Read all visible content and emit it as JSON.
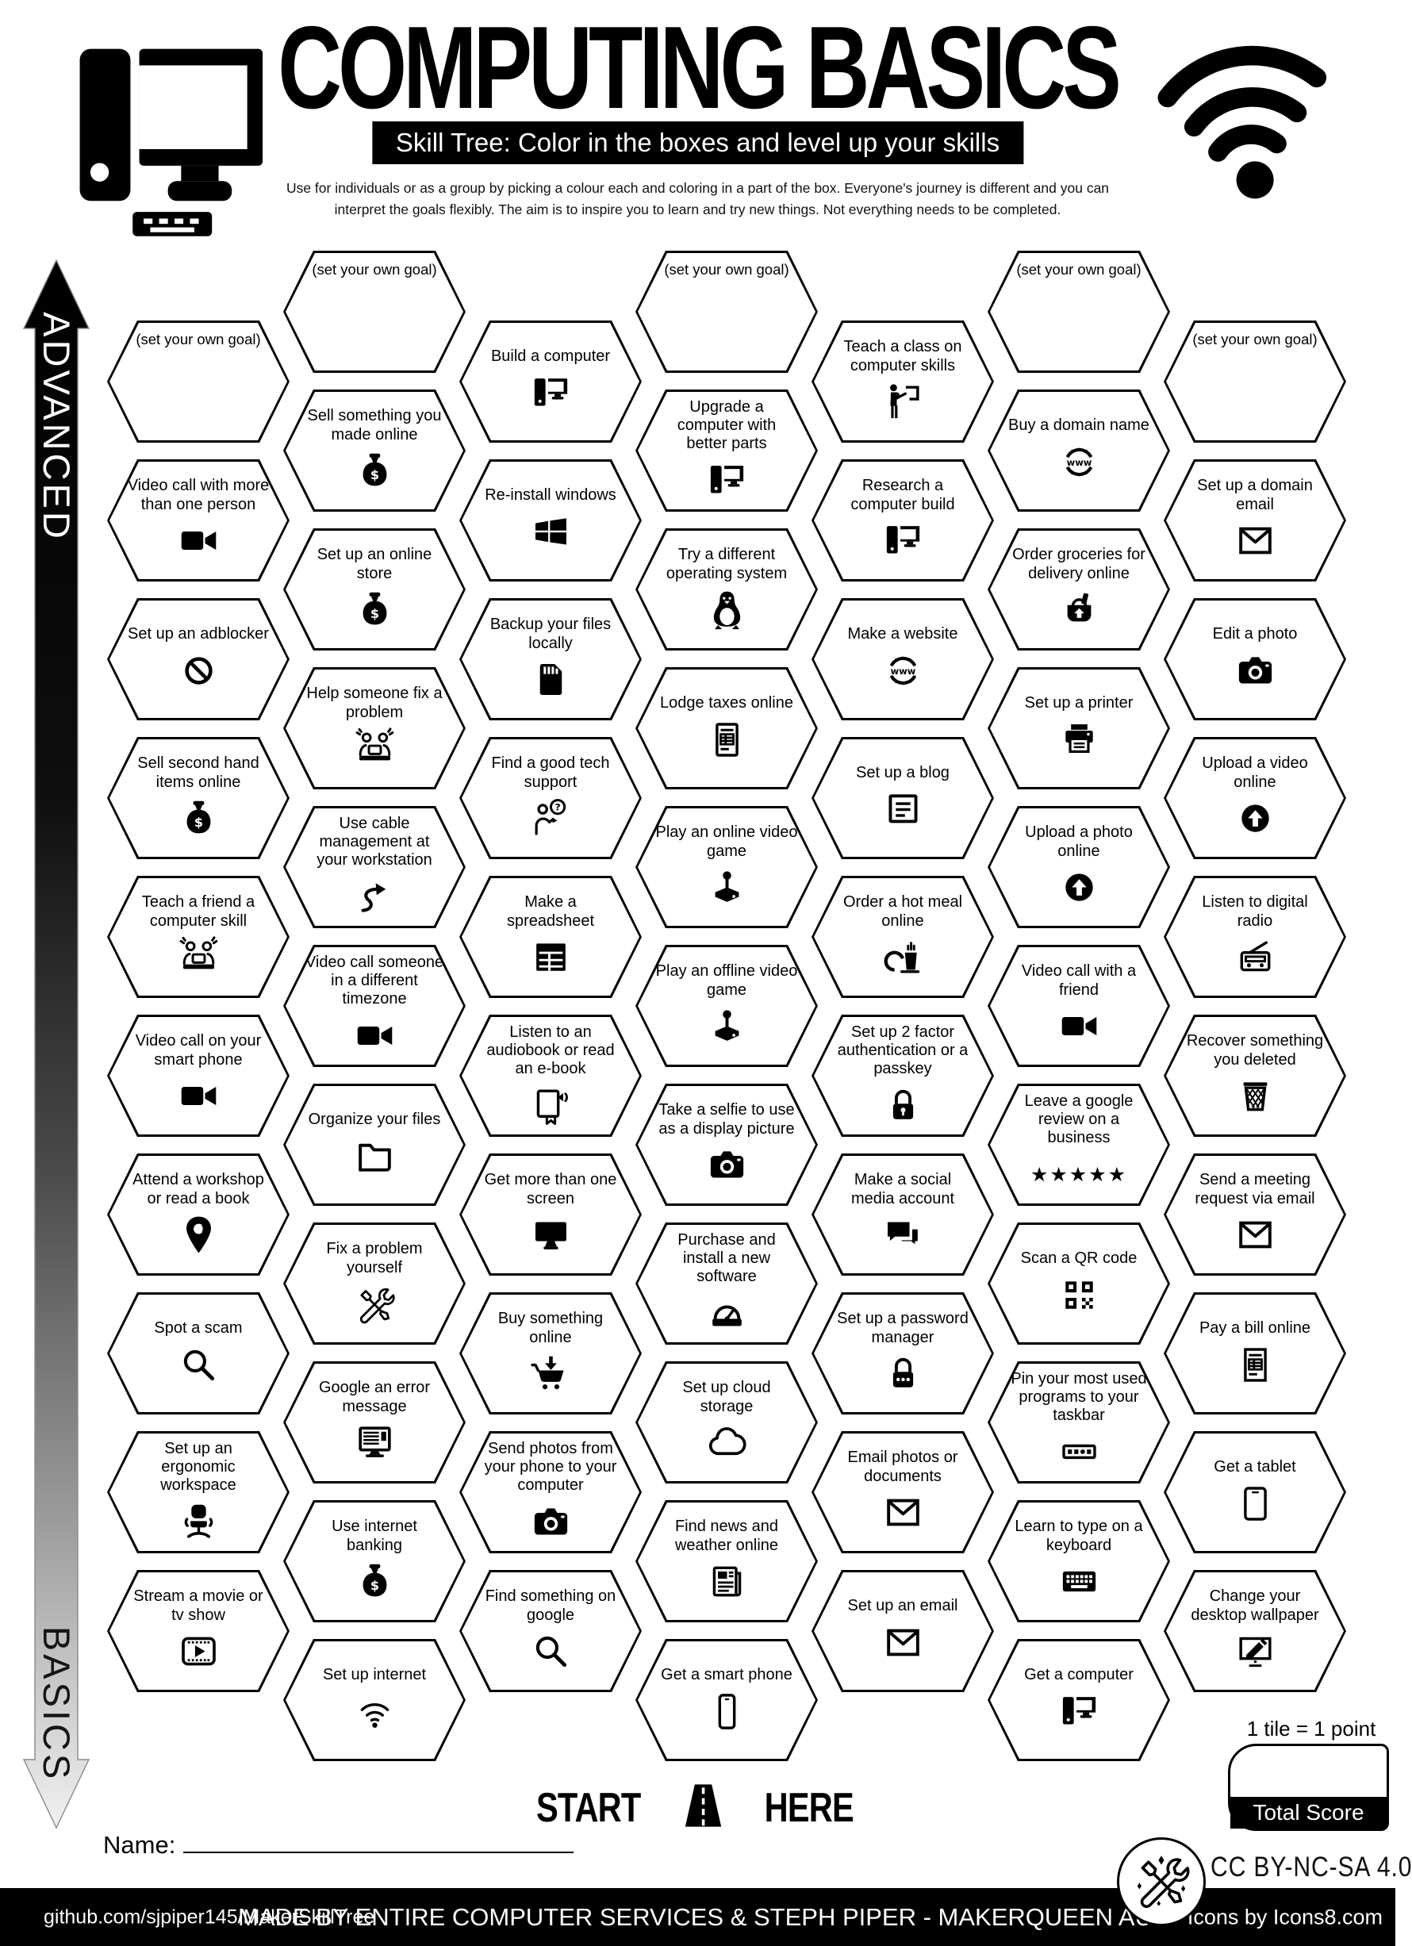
{
  "header": {
    "title": "COMPUTING BASICS",
    "subtitle": "Skill Tree:  Color in the boxes and level up your skills",
    "description_line1": "Use for individuals or as a group by picking a colour each and coloring in a part of the box.  Everyone's journey is different and you can",
    "description_line2": "interpret the goals flexibly.  The aim is to inspire you to learn and try new things. Not everything needs to be completed.",
    "computer_icon": "desktop-computer-icon",
    "wifi_icon": "wifi-icon"
  },
  "axis": {
    "advanced_label": "ADVANCED",
    "basics_label": "BASICS"
  },
  "skill_tree": {
    "goal_label": "(set your own goal)",
    "columns": [
      {
        "id": "col-1",
        "tiles": [
          {
            "type": "goal",
            "label": "(set your own goal)"
          },
          {
            "label": "Video call with more than one person",
            "icon": "video-camera-icon"
          },
          {
            "label": "Set up an adblocker",
            "icon": "prohibition-icon"
          },
          {
            "label": "Sell second hand items online",
            "icon": "money-bag-icon"
          },
          {
            "label": "Teach a friend a computer skill",
            "icon": "people-laptop-icon"
          },
          {
            "label": "Video call on your smart phone",
            "icon": "video-camera-icon"
          },
          {
            "label": "Attend a workshop or read a book",
            "icon": "location-pin-icon"
          },
          {
            "label": "Spot a scam",
            "icon": "magnifier-icon"
          },
          {
            "label": "Set up an ergonomic workspace",
            "icon": "office-chair-icon"
          },
          {
            "label": "Stream a movie or tv show",
            "icon": "film-play-icon"
          }
        ]
      },
      {
        "id": "col-2",
        "tiles": [
          {
            "type": "goal",
            "label": "(set your own goal)"
          },
          {
            "label": "Sell something you made online",
            "icon": "money-bag-icon"
          },
          {
            "label": "Set up an online store",
            "icon": "money-bag-icon"
          },
          {
            "label": "Help someone fix a problem",
            "icon": "people-laptop-icon"
          },
          {
            "label": "Use cable management at your workstation",
            "icon": "curved-arrow-icon"
          },
          {
            "label": "Video call someone in a different timezone",
            "icon": "video-camera-icon"
          },
          {
            "label": "Organize your files",
            "icon": "folder-icon"
          },
          {
            "label": "Fix a problem yourself",
            "icon": "crossed-tools-icon"
          },
          {
            "label": "Google an error message",
            "icon": "monitor-text-icon"
          },
          {
            "label": "Use internet banking",
            "icon": "money-bag-icon"
          },
          {
            "label": "Set up internet",
            "icon": "wifi-icon"
          }
        ]
      },
      {
        "id": "col-3",
        "tiles": [
          {
            "label": "Build a computer",
            "icon": "desktop-computer-icon"
          },
          {
            "label": "Re-install windows",
            "icon": "windows-logo-icon"
          },
          {
            "label": "Backup your files locally",
            "icon": "sd-card-icon"
          },
          {
            "label": "Find a good tech support",
            "icon": "person-question-icon"
          },
          {
            "label": "Make a spreadsheet",
            "icon": "spreadsheet-icon"
          },
          {
            "label": "Listen to an audiobook or read an e-book",
            "icon": "audiobook-icon"
          },
          {
            "label": "Get more than one screen",
            "icon": "monitor-icon"
          },
          {
            "label": "Buy something online",
            "icon": "cart-download-icon"
          },
          {
            "label": "Send photos from your phone to your computer",
            "icon": "camera-icon"
          },
          {
            "label": "Find something on google",
            "icon": "magnifier-icon"
          }
        ]
      },
      {
        "id": "col-4",
        "tiles": [
          {
            "type": "goal",
            "label": "(set your own goal)"
          },
          {
            "label": "Upgrade a computer with better parts",
            "icon": "desktop-computer-icon"
          },
          {
            "label": "Try a different operating system",
            "icon": "tux-penguin-icon"
          },
          {
            "label": "Lodge taxes online",
            "icon": "tax-form-icon"
          },
          {
            "label": "Play an online video game",
            "icon": "joystick-icon"
          },
          {
            "label": "Play an offline video game",
            "icon": "joystick-icon"
          },
          {
            "label": "Take a selfie to use as a display picture",
            "icon": "camera-icon"
          },
          {
            "label": "Purchase and install a new software",
            "icon": "install-gauge-icon"
          },
          {
            "label": "Set up cloud storage",
            "icon": "cloud-icon"
          },
          {
            "label": "Find news and weather online",
            "icon": "newspaper-icon"
          },
          {
            "label": "Get a smart phone",
            "icon": "smartphone-icon"
          }
        ]
      },
      {
        "id": "col-5",
        "tiles": [
          {
            "label": "Teach a class on computer skills",
            "icon": "teacher-blackboard-icon"
          },
          {
            "label": "Research a computer build",
            "icon": "desktop-computer-icon"
          },
          {
            "label": "Make a website",
            "icon": "www-globe-icon"
          },
          {
            "label": "Set up a blog",
            "icon": "blog-icon"
          },
          {
            "label": "Order a hot meal online",
            "icon": "hot-meal-icon"
          },
          {
            "label": "Set up 2 factor authentication or a passkey",
            "icon": "padlock-icon"
          },
          {
            "label": "Make a social media account",
            "icon": "chat-bubbles-icon"
          },
          {
            "label": "Set up a password manager",
            "icon": "padlock-dots-icon"
          },
          {
            "label": "Email photos or documents",
            "icon": "envelope-icon"
          },
          {
            "label": "Set up an email",
            "icon": "envelope-icon"
          }
        ]
      },
      {
        "id": "col-6",
        "tiles": [
          {
            "type": "goal",
            "label": "(set your own goal)"
          },
          {
            "label": "Buy a domain name",
            "icon": "www-globe-icon"
          },
          {
            "label": "Order groceries for delivery online",
            "icon": "grocery-basket-icon"
          },
          {
            "label": "Set up a printer",
            "icon": "printer-icon"
          },
          {
            "label": "Upload a photo online",
            "icon": "upload-circle-icon"
          },
          {
            "label": "Video call with a friend",
            "icon": "video-camera-icon"
          },
          {
            "label": "Leave a google review on a business",
            "icon": "five-stars-icon"
          },
          {
            "label": "Scan a QR code",
            "icon": "qr-code-icon"
          },
          {
            "label": "Pin your most used programs to your taskbar",
            "icon": "taskbar-icon"
          },
          {
            "label": "Learn to type on a keyboard",
            "icon": "keyboard-icon"
          },
          {
            "label": "Get a computer",
            "icon": "desktop-computer-icon"
          }
        ]
      },
      {
        "id": "col-7",
        "tiles": [
          {
            "type": "goal",
            "label": "(set your own goal)"
          },
          {
            "label": "Set up a domain email",
            "icon": "envelope-icon"
          },
          {
            "label": "Edit a photo",
            "icon": "camera-icon"
          },
          {
            "label": "Upload a video online",
            "icon": "upload-circle-icon"
          },
          {
            "label": "Listen to digital radio",
            "icon": "radio-icon"
          },
          {
            "label": "Recover something you deleted",
            "icon": "trash-basket-icon"
          },
          {
            "label": "Send a meeting request via email",
            "icon": "envelope-icon"
          },
          {
            "label": "Pay a bill online",
            "icon": "bill-icon"
          },
          {
            "label": "Get a tablet",
            "icon": "tablet-icon"
          },
          {
            "label": "Change your desktop wallpaper",
            "icon": "wallpaper-pen-icon"
          }
        ]
      }
    ]
  },
  "footer": {
    "start_label": "START",
    "here_label": "HERE",
    "road_icon": "road-icon",
    "name_label": "Name:",
    "tile_point_note": "1 tile = 1 point",
    "total_score_label": "Total Score",
    "license": "CC BY-NC-SA 4.0",
    "badge_icon": "crossed-tools-icon",
    "bar": {
      "left": "github.com/sjpiper145/MakerSkillTree",
      "center": "MADE BY ENTIRE COMPUTER SERVICES & STEPH PIPER  -  MAKERQUEEN AU",
      "right": "Icons by Icons8.com"
    }
  },
  "colors": {
    "ink": "#000000",
    "paper": "#ffffff"
  }
}
